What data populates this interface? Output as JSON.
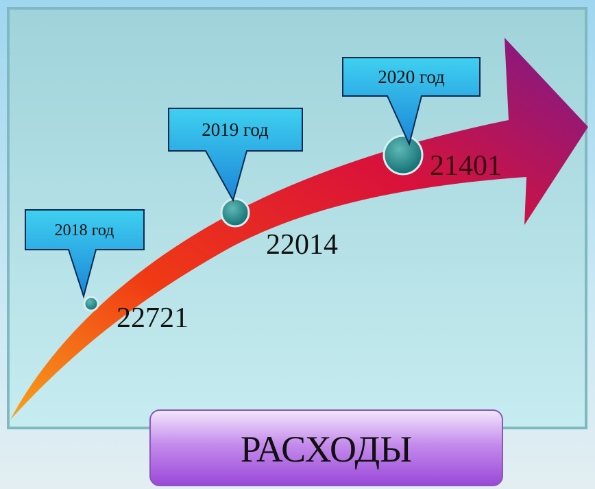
{
  "title": "РАСХОДЫ",
  "points": [
    {
      "label": "2018 год",
      "value": 22721
    },
    {
      "label": "2019 год",
      "value": 22014
    },
    {
      "label": "2020 год",
      "value": 21401
    }
  ]
}
